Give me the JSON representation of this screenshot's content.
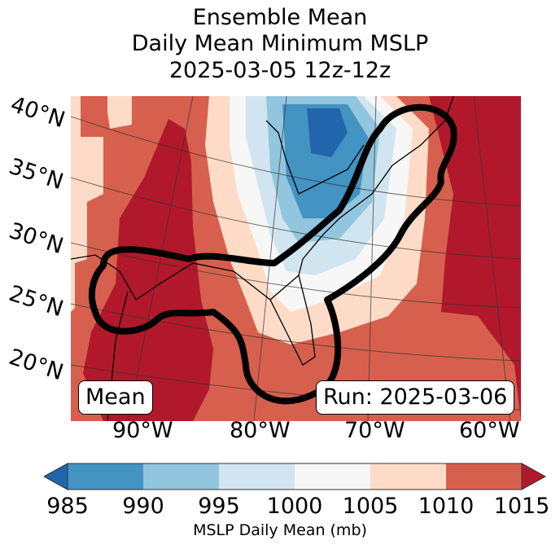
{
  "title": {
    "line1": "Ensemble Mean",
    "line2": "Daily Mean Minimum MSLP",
    "line3": "2025-03-05 12z-12z"
  },
  "map": {
    "lat_labels": [
      "40°N",
      "35°N",
      "30°N",
      "25°N",
      "20°N"
    ],
    "lon_labels": [
      "90°W",
      "80°W",
      "70°W",
      "60°W"
    ],
    "left_box": "Mean",
    "right_box": "Run: 2025-03-06"
  },
  "colorbar": {
    "ticks": [
      "985",
      "990",
      "995",
      "1000",
      "1005",
      "1010",
      "1015"
    ],
    "label": "MSLP Daily Mean (mb)",
    "colors": [
      "#2166ac",
      "#4393c3",
      "#92c5de",
      "#d1e5f0",
      "#f7f7f7",
      "#fddbc7",
      "#d6604d",
      "#b2182b"
    ]
  }
}
